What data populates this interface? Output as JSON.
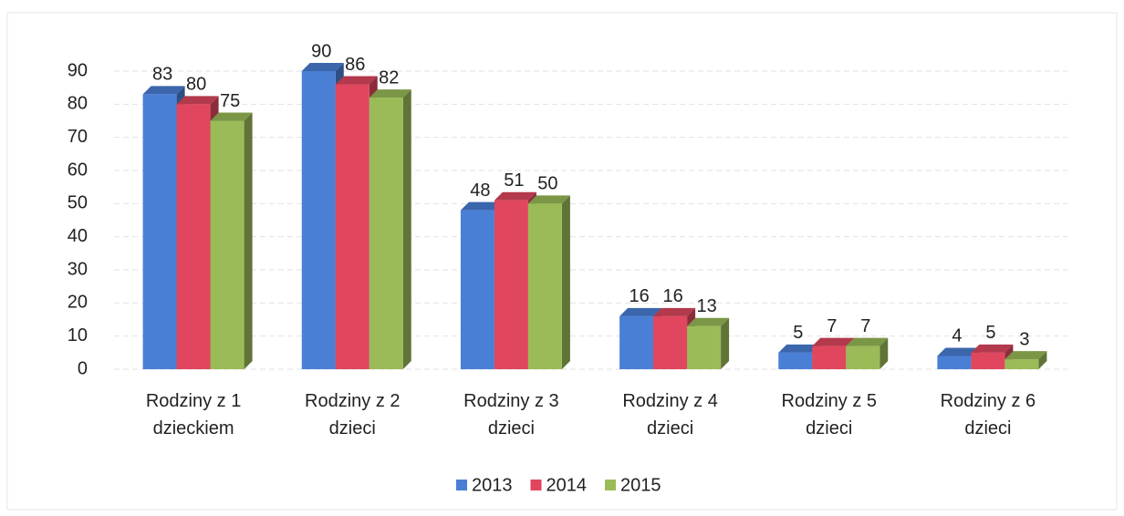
{
  "chart_data": {
    "type": "bar3d",
    "categories": [
      "Rodziny z 1 dzieckiem",
      "Rodziny z 2 dzieci",
      "Rodziny z 3 dzieci",
      "Rodziny z 4 dzieci",
      "Rodziny z 5 dzieci",
      "Rodziny z 6 dzieci"
    ],
    "series": [
      {
        "name": "2013",
        "color": "#4a7fd6",
        "values": [
          83,
          90,
          48,
          16,
          5,
          4
        ]
      },
      {
        "name": "2014",
        "color": "#e0475f",
        "values": [
          80,
          86,
          51,
          16,
          7,
          5
        ]
      },
      {
        "name": "2015",
        "color": "#9bbb59",
        "values": [
          75,
          82,
          50,
          13,
          7,
          3
        ]
      }
    ],
    "ylim": [
      0,
      90
    ],
    "yticks": [
      0,
      10,
      20,
      30,
      40,
      50,
      60,
      70,
      80,
      90
    ],
    "grid": true
  }
}
